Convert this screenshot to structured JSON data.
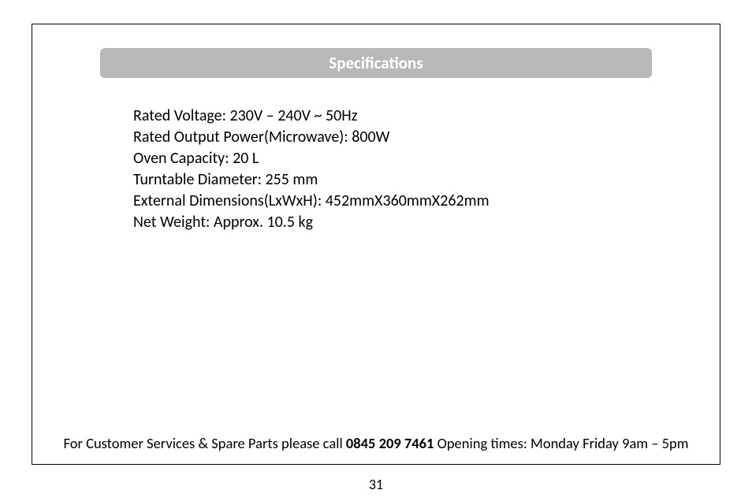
{
  "header": {
    "title": "Specifications",
    "bar_color": "#b8b8b8",
    "title_color": "#ffffff",
    "title_fontsize": 21,
    "title_weight": "bold",
    "border_radius": 6
  },
  "specs": [
    "Rated Voltage: 230V – 240V ~ 50Hz",
    "Rated Output Power(Microwave): 800W",
    "Oven Capacity: 20 L",
    "Turntable Diameter: 255 mm",
    "External Dimensions(LxWxH): 452mmX360mmX262mm",
    "Net Weight: Approx. 10.5 kg"
  ],
  "specs_style": {
    "fontsize": 20,
    "color": "#000000",
    "line_height": 1.35
  },
  "footer": {
    "prefix": "For Customer Services & Spare Parts please call ",
    "phone": "0845 209 7461",
    "suffix": " Opening times: Monday  Friday  9am – 5pm",
    "fontsize": 18.5
  },
  "page_number": "31",
  "frame": {
    "border_color": "#000000",
    "background_color": "#ffffff"
  }
}
